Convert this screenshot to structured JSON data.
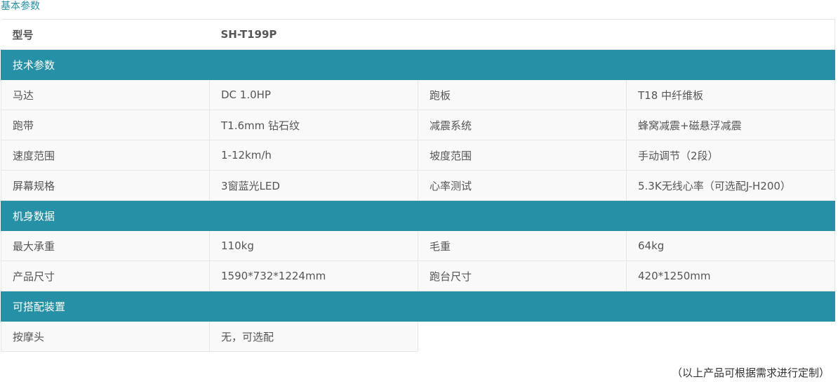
{
  "title": "基本参数",
  "model": {
    "label": "型号",
    "value": "SH-T199P"
  },
  "sections": [
    {
      "name": "技术参数",
      "rows": [
        [
          "马达",
          "DC 1.0HP",
          "跑板",
          "T18 中纤维板"
        ],
        [
          "跑带",
          "T1.6mm 钻石纹",
          "减震系统",
          "蜂窝减震+磁悬浮减震"
        ],
        [
          "速度范围",
          "1-12km/h",
          "坡度范围",
          "手动调节（2段）"
        ],
        [
          "屏幕规格",
          "3窗蓝光LED",
          "心率测试",
          "5.3K无线心率（可选配J-H200）"
        ]
      ]
    },
    {
      "name": "机身数据",
      "rows": [
        [
          "最大承重",
          "110kg",
          "毛重",
          "64kg"
        ],
        [
          "产品尺寸",
          "1590*732*1224mm",
          "跑台尺寸",
          "420*1250mm"
        ]
      ]
    },
    {
      "name": "可搭配装置",
      "rows": [
        [
          "按摩头",
          "无，可选配"
        ]
      ]
    }
  ],
  "footer": "（以上产品可根据需求进行定制）",
  "colors": {
    "accent": "#2690a6"
  }
}
